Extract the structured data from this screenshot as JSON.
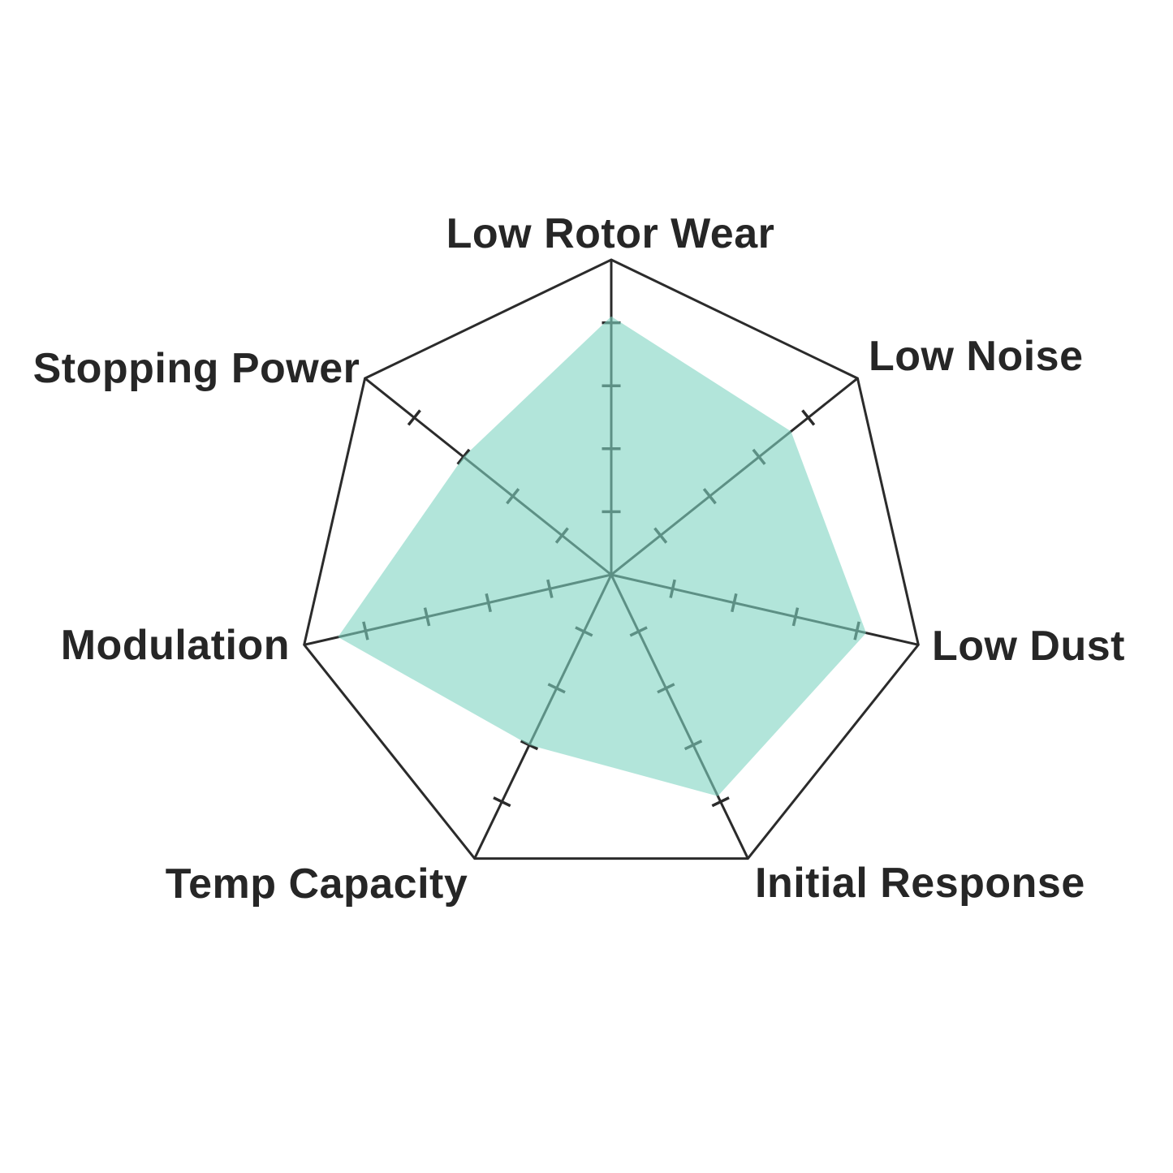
{
  "chart_data": {
    "type": "radar",
    "title": "",
    "categories": [
      "Low Rotor Wear",
      "Low Noise",
      "Low Dust",
      "Initial Response",
      "Temp Capacity",
      "Modulation",
      "Stopping Power"
    ],
    "series": [
      {
        "values": [
          4.1,
          3.65,
          4.15,
          3.9,
          3.0,
          4.45,
          3.0
        ]
      }
    ],
    "scale": {
      "min": 0,
      "max": 5,
      "tick_step": 1,
      "ticks_per_axis": 4
    },
    "layout_hints": {
      "grid": "spokes-with-tick-dashes-and-outer-heptagon",
      "rings": "none",
      "legend": "none",
      "start_axis": "top",
      "direction": "clockwise"
    },
    "colors": {
      "fill": "#7fd4c1",
      "fill_opacity": 0.6,
      "grid_line": "#2b2b2b",
      "label_text": "#262626",
      "background": "#ffffff"
    }
  }
}
